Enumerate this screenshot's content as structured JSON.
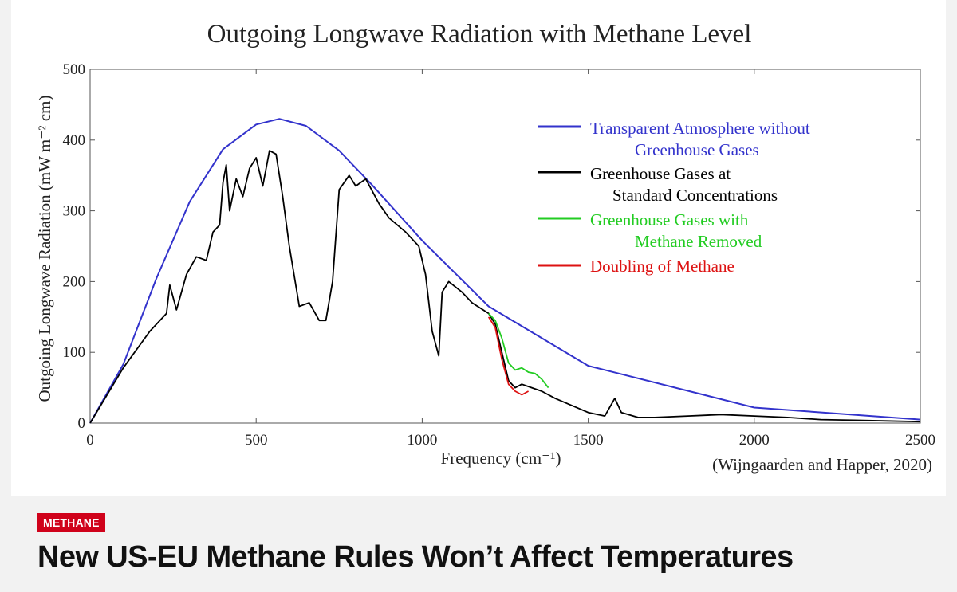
{
  "article": {
    "category": "METHANE",
    "headline": "New US-EU Methane Rules Won’t Affect Temperatures"
  },
  "chart_data": {
    "type": "line",
    "title": "Outgoing Longwave Radiation with Methane Level",
    "xlabel": "Frequency (cm⁻¹)",
    "ylabel": "Outgoing Longwave Radiation (mW m⁻² cm)",
    "source": "(Wijngaarden and Happer, 2020)",
    "xlim": [
      0,
      2500
    ],
    "ylim": [
      0,
      500
    ],
    "x_ticks": [
      0,
      500,
      1000,
      1500,
      2000,
      2500
    ],
    "y_ticks": [
      0,
      100,
      200,
      300,
      400,
      500
    ],
    "grid": false,
    "legend_position": "top-right",
    "series": [
      {
        "name": "Transparent Atmosphere without Greenhouse Gases",
        "color": "#3333cc",
        "x": [
          0,
          100,
          200,
          300,
          400,
          500,
          570,
          650,
          750,
          850,
          1000,
          1200,
          1500,
          2000,
          2500
        ],
        "y": [
          0,
          83,
          205,
          313,
          387,
          422,
          430,
          420,
          385,
          336,
          258,
          165,
          81,
          22,
          5
        ]
      },
      {
        "name": "Greenhouse Gases at Standard Concentrations",
        "color": "#000000",
        "x": [
          0,
          100,
          180,
          230,
          240,
          260,
          290,
          320,
          350,
          370,
          390,
          400,
          410,
          420,
          440,
          460,
          480,
          500,
          520,
          540,
          560,
          580,
          600,
          630,
          660,
          690,
          710,
          730,
          750,
          780,
          800,
          830,
          870,
          900,
          950,
          990,
          1010,
          1030,
          1050,
          1060,
          1080,
          1120,
          1150,
          1200,
          1220,
          1240,
          1260,
          1280,
          1300,
          1330,
          1360,
          1400,
          1450,
          1500,
          1550,
          1580,
          1600,
          1650,
          1700,
          1800,
          1900,
          2000,
          2100,
          2200,
          2300,
          2400,
          2500
        ],
        "y": [
          0,
          78,
          130,
          155,
          195,
          160,
          210,
          235,
          230,
          270,
          280,
          340,
          365,
          300,
          345,
          320,
          360,
          375,
          335,
          385,
          380,
          320,
          250,
          165,
          170,
          145,
          145,
          200,
          330,
          350,
          335,
          345,
          310,
          290,
          270,
          250,
          210,
          130,
          95,
          185,
          200,
          185,
          170,
          155,
          140,
          100,
          60,
          50,
          55,
          50,
          45,
          35,
          25,
          15,
          10,
          35,
          15,
          8,
          8,
          10,
          12,
          10,
          8,
          5,
          4,
          3,
          2
        ]
      },
      {
        "name": "Greenhouse Gases with Methane Removed",
        "color": "#22cc22",
        "x": [
          1200,
          1220,
          1240,
          1260,
          1280,
          1300,
          1320,
          1340,
          1360,
          1380
        ],
        "y": [
          155,
          145,
          120,
          85,
          75,
          78,
          72,
          70,
          62,
          50
        ]
      },
      {
        "name": "Doubling of Methane",
        "color": "#dd1111",
        "x": [
          1200,
          1220,
          1240,
          1260,
          1280,
          1300,
          1320
        ],
        "y": [
          150,
          135,
          90,
          55,
          45,
          40,
          45
        ]
      }
    ]
  }
}
